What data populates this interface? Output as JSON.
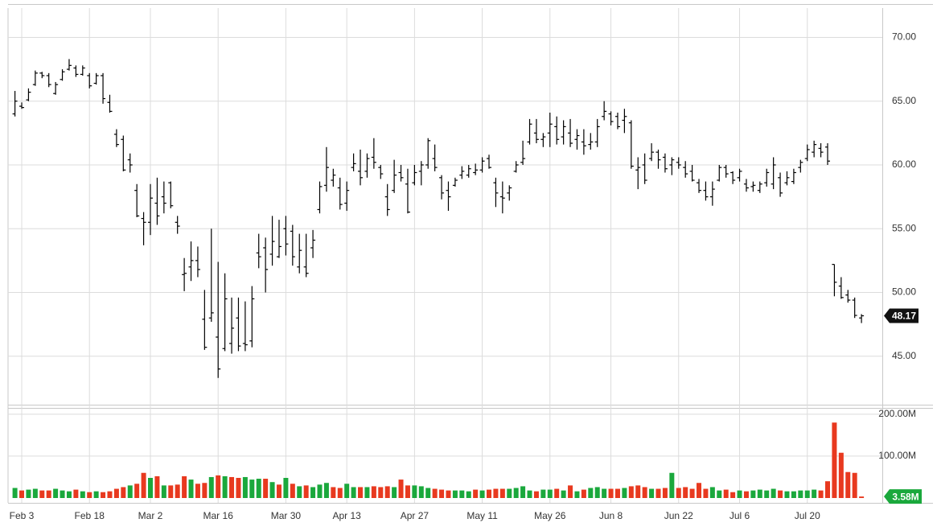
{
  "chart_data": [
    {
      "type": "ohlc",
      "color": "#000000",
      "categories": [
        null,
        "Feb 3",
        null,
        null,
        null,
        null,
        null,
        null,
        null,
        null,
        null,
        "Feb 18",
        null,
        null,
        null,
        null,
        null,
        null,
        null,
        null,
        "Mar 2",
        null,
        null,
        null,
        null,
        null,
        null,
        null,
        null,
        null,
        "Mar 16",
        null,
        null,
        null,
        null,
        null,
        null,
        null,
        null,
        null,
        "Mar 30",
        null,
        null,
        null,
        null,
        null,
        null,
        null,
        null,
        "Apr 13",
        null,
        null,
        null,
        null,
        null,
        null,
        null,
        null,
        null,
        "Apr 27",
        null,
        null,
        null,
        null,
        null,
        null,
        null,
        null,
        null,
        "May 11",
        null,
        null,
        null,
        null,
        null,
        null,
        null,
        null,
        null,
        "May 26",
        null,
        null,
        null,
        null,
        null,
        null,
        null,
        null,
        "Jun 8",
        null,
        null,
        null,
        null,
        null,
        null,
        null,
        null,
        null,
        "Jun 22",
        null,
        null,
        null,
        null,
        null,
        null,
        null,
        null,
        "Jul 6",
        null,
        null,
        null,
        null,
        null,
        null,
        null,
        null,
        null,
        "Jul 20",
        null,
        null,
        null,
        null,
        null,
        null,
        null,
        null
      ],
      "open": [
        64.0,
        64.6,
        65.1,
        66.3,
        67.2,
        67.0,
        65.6,
        66.7,
        67.5,
        67.6,
        67.1,
        67.0,
        66.4,
        67.0,
        64.9,
        62.4,
        62.0,
        60.4,
        58.0,
        55.8,
        55.5,
        57.0,
        57.5,
        58.6,
        55.5,
        51.4,
        52.0,
        52.5,
        47.9,
        48.0,
        46.5,
        45.6,
        46.0,
        48.0,
        46.0,
        46.2,
        53.1,
        53.5,
        53.0,
        52.8,
        55.0,
        54.8,
        52.0,
        52.0,
        53.5,
        56.5,
        58.4,
        58.8,
        58.2,
        57.0,
        59.8,
        59.5,
        59.5,
        60.6,
        59.8,
        57.5,
        58.0,
        59.4,
        58.5,
        58.6,
        59.5,
        60.0,
        60.5,
        59.0,
        58.0,
        58.4,
        59.2,
        59.2,
        59.4,
        59.6,
        60.5,
        58.6,
        57.5,
        57.8,
        59.5,
        60.2,
        61.8,
        62.5,
        62.0,
        62.5,
        63.0,
        62.2,
        62.5,
        62.0,
        61.8,
        61.6,
        61.8,
        63.8,
        64.0,
        63.8,
        63.5,
        63.3,
        59.6,
        60.0,
        60.5,
        61.0,
        60.6,
        60.0,
        60.2,
        59.8,
        59.5,
        58.6,
        58.0,
        57.5,
        58.8,
        59.8,
        59.4,
        59.0,
        58.5,
        58.3,
        58.0,
        58.6,
        58.5,
        59.0,
        58.6,
        58.7,
        59.8,
        60.5,
        61.0,
        61.3,
        61.4,
        52.2,
        50.5,
        49.8,
        49.4,
        48.0
      ],
      "high": [
        65.8,
        64.9,
        66.0,
        67.4,
        67.3,
        67.2,
        66.5,
        67.5,
        68.3,
        67.8,
        67.8,
        67.2,
        67.2,
        67.2,
        65.5,
        62.8,
        62.3,
        60.9,
        58.5,
        56.3,
        58.5,
        59.0,
        58.7,
        58.7,
        56.0,
        52.7,
        54.0,
        53.6,
        50.2,
        55.0,
        52.4,
        51.5,
        49.6,
        49.6,
        49.3,
        50.5,
        54.6,
        54.3,
        56.0,
        55.7,
        56.0,
        55.3,
        54.6,
        54.6,
        54.9,
        58.7,
        61.4,
        59.7,
        59.0,
        58.7,
        60.9,
        61.2,
        60.9,
        62.1,
        60.0,
        58.5,
        60.4,
        60.0,
        59.7,
        60.0,
        60.3,
        62.1,
        61.6,
        59.2,
        58.7,
        59.0,
        59.9,
        60.0,
        60.1,
        60.6,
        60.8,
        59.0,
        58.7,
        58.4,
        60.3,
        61.9,
        63.6,
        63.6,
        62.5,
        64.1,
        63.8,
        63.5,
        63.6,
        62.8,
        62.8,
        62.5,
        63.6,
        65.0,
        64.2,
        64.1,
        64.4,
        63.5,
        60.6,
        60.9,
        61.7,
        61.2,
        60.9,
        60.6,
        60.6,
        60.3,
        60.0,
        58.9,
        58.7,
        58.7,
        60.0,
        60.0,
        59.5,
        59.7,
        58.9,
        58.7,
        58.7,
        59.7,
        60.6,
        59.4,
        59.5,
        59.7,
        60.4,
        61.6,
        61.9,
        61.7,
        61.7,
        52.2,
        51.2,
        50.2,
        49.6,
        48.3
      ],
      "low": [
        63.8,
        64.4,
        65.0,
        66.2,
        66.8,
        66.1,
        65.5,
        66.6,
        67.4,
        66.9,
        67.0,
        66.0,
        66.3,
        64.8,
        64.1,
        61.4,
        59.5,
        59.4,
        55.9,
        53.7,
        54.5,
        55.3,
        56.2,
        56.6,
        54.6,
        50.1,
        50.9,
        51.2,
        45.5,
        47.7,
        43.3,
        45.4,
        45.2,
        45.4,
        45.4,
        45.7,
        51.9,
        50.0,
        52.1,
        52.7,
        52.9,
        52.1,
        51.5,
        51.2,
        52.7,
        56.2,
        57.9,
        58.3,
        56.5,
        56.4,
        59.5,
        58.4,
        59.0,
        59.7,
        58.9,
        56.0,
        57.8,
        58.7,
        56.2,
        58.4,
        58.4,
        59.7,
        59.5,
        57.3,
        56.4,
        58.3,
        58.9,
        59.0,
        59.2,
        59.4,
        59.7,
        56.7,
        56.2,
        57.2,
        59.4,
        60.0,
        61.6,
        61.7,
        61.4,
        61.4,
        61.6,
        61.6,
        61.4,
        61.2,
        60.8,
        61.2,
        61.4,
        63.5,
        63.1,
        62.8,
        62.5,
        59.7,
        58.1,
        58.5,
        60.3,
        59.7,
        59.4,
        59.2,
        59.7,
        59.0,
        58.7,
        57.8,
        57.2,
        56.8,
        58.7,
        59.0,
        58.5,
        58.7,
        57.9,
        57.9,
        57.8,
        58.3,
        58.1,
        57.5,
        58.4,
        58.5,
        59.4,
        60.3,
        60.6,
        60.6,
        60.0,
        49.7,
        49.5,
        49.2,
        48.0,
        47.6
      ],
      "close": [
        65.0,
        64.5,
        65.7,
        67.2,
        67.0,
        66.3,
        66.3,
        67.3,
        67.8,
        67.1,
        67.6,
        66.2,
        67.0,
        65.2,
        64.2,
        61.6,
        59.6,
        60.0,
        56.0,
        55.5,
        57.4,
        56.0,
        57.0,
        56.8,
        55.2,
        51.5,
        52.5,
        51.8,
        45.7,
        48.4,
        44.0,
        49.5,
        47.2,
        45.8,
        45.9,
        49.5,
        52.8,
        51.8,
        54.0,
        53.6,
        53.8,
        52.8,
        53.3,
        51.5,
        54.1,
        58.3,
        59.8,
        59.2,
        56.9,
        58.0,
        60.1,
        59.0,
        60.5,
        60.2,
        59.3,
        56.5,
        59.2,
        59.0,
        56.3,
        59.4,
        60.0,
        61.9,
        59.8,
        57.8,
        57.5,
        58.8,
        59.5,
        59.7,
        59.6,
        60.3,
        59.8,
        57.8,
        57.4,
        58.2,
        60.0,
        60.5,
        63.2,
        62.0,
        62.2,
        63.2,
        62.0,
        63.0,
        61.7,
        62.3,
        61.5,
        61.8,
        63.0,
        64.2,
        63.4,
        63.0,
        63.8,
        59.9,
        59.8,
        58.8,
        61.0,
        60.4,
        59.7,
        60.4,
        60.0,
        59.3,
        58.8,
        58.0,
        57.5,
        58.1,
        59.8,
        59.3,
        58.8,
        59.5,
        58.2,
        58.4,
        58.5,
        59.4,
        60.0,
        57.8,
        59.0,
        59.4,
        60.2,
        61.2,
        61.6,
        61.0,
        60.3,
        50.8,
        49.6,
        49.4,
        48.2,
        48.17
      ],
      "ylim": [
        41.2,
        72.3
      ],
      "yticks": [
        {
          "value": 45,
          "label": "45.00"
        },
        {
          "value": 50,
          "label": "50.00"
        },
        {
          "value": 55,
          "label": "55.00"
        },
        {
          "value": 60,
          "label": "60.00"
        },
        {
          "value": 65,
          "label": "65.00"
        },
        {
          "value": 70,
          "label": "70.00"
        }
      ],
      "grid": true
    },
    {
      "type": "bar",
      "up_color": "#1aa83c",
      "down_color": "#e8391f",
      "values": [
        24,
        18,
        20,
        22,
        18,
        18,
        22,
        18,
        16,
        20,
        16,
        14,
        16,
        14,
        16,
        22,
        26,
        30,
        34,
        60,
        48,
        52,
        30,
        30,
        32,
        52,
        44,
        34,
        36,
        50,
        54,
        52,
        50,
        48,
        50,
        44,
        46,
        46,
        38,
        32,
        48,
        34,
        28,
        30,
        26,
        32,
        36,
        26,
        24,
        34,
        26,
        26,
        26,
        28,
        26,
        28,
        26,
        44,
        30,
        30,
        28,
        24,
        22,
        20,
        18,
        18,
        18,
        16,
        20,
        18,
        20,
        22,
        22,
        22,
        24,
        28,
        18,
        16,
        20,
        20,
        22,
        18,
        30,
        16,
        20,
        24,
        26,
        22,
        22,
        22,
        24,
        28,
        30,
        26,
        22,
        22,
        24,
        60,
        24,
        26,
        22,
        36,
        22,
        26,
        18,
        20,
        14,
        18,
        16,
        18,
        20,
        18,
        22,
        18,
        16,
        16,
        18,
        18,
        20,
        18,
        40,
        180,
        108,
        62,
        60,
        3.58
      ],
      "last_value_label": "3.58M",
      "ylim": [
        0,
        215
      ],
      "yticks": [
        {
          "value": 100,
          "label": "100.00M"
        },
        {
          "value": 200,
          "label": "200.00M"
        }
      ],
      "grid": true
    }
  ]
}
